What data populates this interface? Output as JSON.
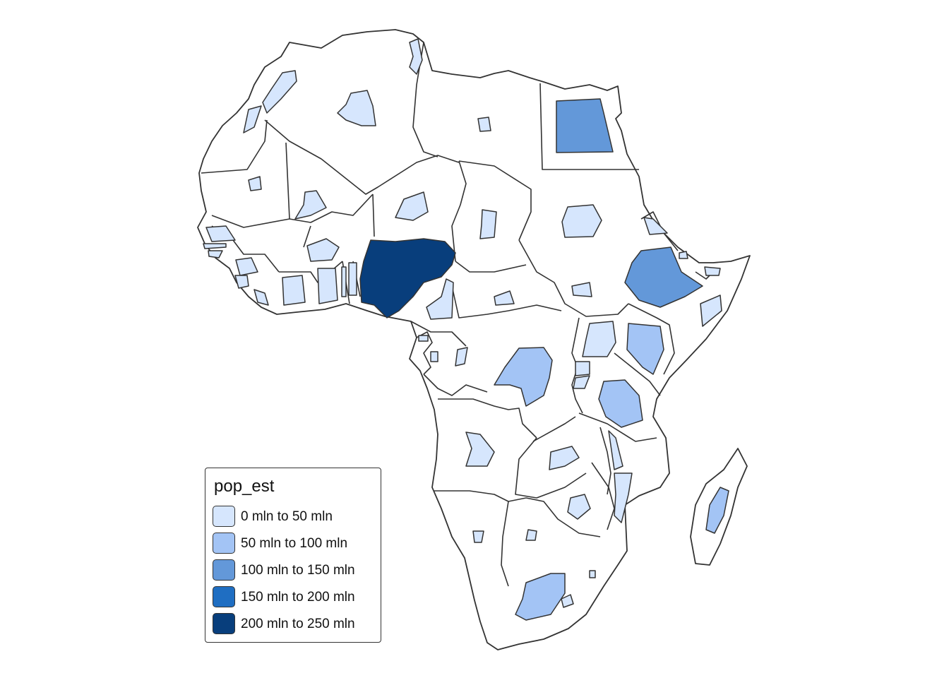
{
  "legend": {
    "title": "pop_est",
    "items": [
      {
        "label": "0 mln to 50 mln",
        "color": "#d6e6fd"
      },
      {
        "label": "50 mln to 100 mln",
        "color": "#a3c4f5"
      },
      {
        "label": "100 mln to 150 mln",
        "color": "#6398d9"
      },
      {
        "label": "150 mln to 200 mln",
        "color": "#1f6ec2"
      },
      {
        "label": "200 mln to 250 mln",
        "color": "#083e7c"
      }
    ]
  },
  "map": {
    "region": "Africa",
    "variable": "pop_est",
    "border_color": "#333333",
    "background_fill": "#ffffff",
    "highlighted": [
      {
        "country": "Nigeria",
        "class": 4
      },
      {
        "country": "Egypt",
        "class": 2
      },
      {
        "country": "Ethiopia",
        "class": 2
      },
      {
        "country": "DR Congo",
        "class": 1
      },
      {
        "country": "Tanzania",
        "class": 1
      },
      {
        "country": "Kenya",
        "class": 1
      },
      {
        "country": "South Africa",
        "class": 1
      }
    ]
  }
}
